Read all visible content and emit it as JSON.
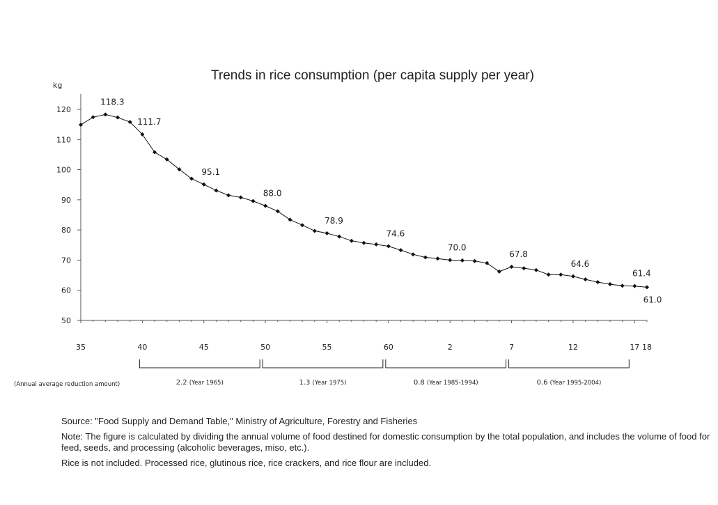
{
  "chart_data": {
    "type": "line",
    "title": "Trends in rice consumption (per capita supply per year)",
    "ylabel": "kg",
    "ylim": [
      50,
      125
    ],
    "yticks": [
      50,
      60,
      70,
      80,
      90,
      100,
      110,
      120
    ],
    "grid": false,
    "xlim": [
      0,
      46
    ],
    "x_tick_labels": [
      {
        "x": 0,
        "label": "35"
      },
      {
        "x": 5,
        "label": "40"
      },
      {
        "x": 10,
        "label": "45"
      },
      {
        "x": 15,
        "label": "50"
      },
      {
        "x": 20,
        "label": "55"
      },
      {
        "x": 25,
        "label": "60"
      },
      {
        "x": 30,
        "label": "2"
      },
      {
        "x": 35,
        "label": "7"
      },
      {
        "x": 40,
        "label": "12"
      },
      {
        "x": 45,
        "label": "17"
      },
      {
        "x": 46,
        "label": "18"
      }
    ],
    "series": [
      {
        "x": [
          0,
          1,
          2,
          3,
          4,
          5,
          6,
          7,
          8,
          9,
          10,
          11,
          12,
          13,
          14,
          15,
          16,
          17,
          18,
          19,
          20,
          21,
          22,
          23,
          24,
          25,
          26,
          27,
          28,
          29,
          30,
          31,
          32,
          33,
          34,
          35,
          36,
          37,
          38,
          39,
          40,
          41,
          42,
          43,
          44,
          45,
          46
        ],
        "values": [
          114.9,
          117.4,
          118.3,
          117.3,
          115.8,
          111.7,
          105.8,
          103.4,
          100.1,
          97.0,
          95.1,
          93.1,
          91.5,
          90.8,
          89.6,
          88.0,
          86.2,
          83.4,
          81.6,
          79.7,
          78.9,
          77.8,
          76.4,
          75.7,
          75.2,
          74.6,
          73.3,
          71.9,
          70.9,
          70.5,
          70.0,
          69.9,
          69.7,
          69.0,
          66.2,
          67.8,
          67.3,
          66.7,
          65.2,
          65.2,
          64.6,
          63.6,
          62.7,
          62.0,
          61.5,
          61.4,
          61.0
        ]
      }
    ],
    "data_labels": [
      {
        "x": 2,
        "text": "118.3",
        "pos": "above"
      },
      {
        "x": 5,
        "text": "111.7",
        "pos": "above"
      },
      {
        "x": 10,
        "text": "95.1",
        "pos": "above"
      },
      {
        "x": 15,
        "text": "88.0",
        "pos": "above"
      },
      {
        "x": 20,
        "text": "78.9",
        "pos": "above"
      },
      {
        "x": 25,
        "text": "74.6",
        "pos": "above"
      },
      {
        "x": 30,
        "text": "70.0",
        "pos": "above"
      },
      {
        "x": 35,
        "text": "67.8",
        "pos": "above"
      },
      {
        "x": 40,
        "text": "64.6",
        "pos": "above"
      },
      {
        "x": 45,
        "text": "61.4",
        "pos": "above"
      },
      {
        "x": 46,
        "text": "61.0",
        "pos": "below"
      }
    ],
    "reduction_label": "(Annual average reduction amount)",
    "brackets": [
      {
        "from": 5,
        "to": 15,
        "amount": "2.2",
        "period": "(Year 1965)"
      },
      {
        "from": 15,
        "to": 25,
        "amount": "1.3",
        "period": "(Year 1975)"
      },
      {
        "from": 25,
        "to": 35,
        "amount": "0.8",
        "period": "(Year 1985-1994)"
      },
      {
        "from": 35,
        "to": 45,
        "amount": "0.6",
        "period": "(Year 1995-2004)"
      }
    ]
  },
  "notes": {
    "source": "Source: \"Food Supply and Demand Table,\" Ministry of Agriculture, Forestry and Fisheries",
    "note": "Note: The figure is calculated by dividing the annual volume of food destined for domestic consumption by the total population, and includes the volume of food for feed, seeds, and processing (alcoholic beverages, miso, etc.).",
    "rice": "Rice is not included. Processed rice, glutinous rice, rice crackers, and rice flour are included."
  }
}
